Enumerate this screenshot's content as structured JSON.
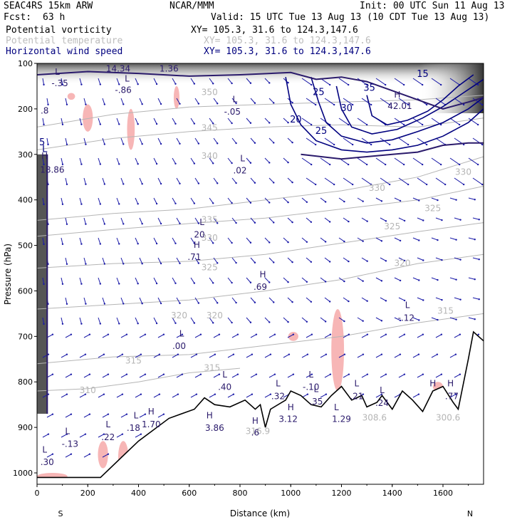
{
  "header": {
    "model": "SEAC4RS 15km ARW",
    "org": "NCAR/MMM",
    "init": "Init: 00 UTC Sun 11 Aug 13",
    "fcst_label": "Fcst:",
    "fcst_value": "63 h",
    "valid": "Valid: 15 UTC Tue 13 Aug 13 (10 CDT Tue 13 Aug 13)",
    "fields": [
      {
        "name": "Potential vorticity",
        "xy": "XY= 105.3, 31.6 to 124.3,147.6"
      },
      {
        "name": "Potential temperature",
        "xy": "XY= 105.3, 31.6 to 124.3,147.6"
      },
      {
        "name": "Horizontal wind speed",
        "xy": "XY= 105.3, 31.6 to 124.3,147.6"
      }
    ]
  },
  "colors": {
    "pv": "#2a1a6b",
    "theta": "#b5b5b5",
    "wind_speed": "#00007f",
    "shading": "#f7b6b6"
  },
  "chart_data": {
    "type": "cross-section",
    "xlabel": "Distance (km)",
    "ylabel": "Pressure (hPa)",
    "xlim": [
      0,
      1760
    ],
    "ylim": [
      1025,
      100
    ],
    "x_ticks": [
      0,
      200,
      400,
      600,
      800,
      1000,
      1200,
      1400,
      1600
    ],
    "y_ticks": [
      100,
      200,
      300,
      400,
      500,
      600,
      700,
      800,
      900,
      1000
    ],
    "endpoints": {
      "left": "S",
      "right": "N"
    },
    "terrain": [
      [
        0,
        1010
      ],
      [
        250,
        1010
      ],
      [
        400,
        930
      ],
      [
        520,
        880
      ],
      [
        620,
        860
      ],
      [
        660,
        835
      ],
      [
        700,
        850
      ],
      [
        760,
        855
      ],
      [
        820,
        840
      ],
      [
        860,
        860
      ],
      [
        880,
        850
      ],
      [
        900,
        900
      ],
      [
        920,
        860
      ],
      [
        980,
        840
      ],
      [
        1000,
        820
      ],
      [
        1040,
        830
      ],
      [
        1080,
        850
      ],
      [
        1120,
        855
      ],
      [
        1160,
        830
      ],
      [
        1200,
        810
      ],
      [
        1240,
        840
      ],
      [
        1280,
        830
      ],
      [
        1300,
        855
      ],
      [
        1340,
        845
      ],
      [
        1360,
        830
      ],
      [
        1400,
        860
      ],
      [
        1440,
        820
      ],
      [
        1480,
        840
      ],
      [
        1520,
        865
      ],
      [
        1560,
        820
      ],
      [
        1600,
        810
      ],
      [
        1640,
        845
      ],
      [
        1660,
        860
      ],
      [
        1700,
        750
      ],
      [
        1720,
        690
      ],
      [
        1760,
        710
      ]
    ],
    "theta_contours": [
      {
        "label": "345",
        "points": [
          [
            0,
            240
          ],
          [
            300,
            212
          ],
          [
            600,
            196
          ],
          [
            900,
            190
          ],
          [
            1200,
            185
          ],
          [
            1500,
            180
          ],
          [
            1760,
            170
          ]
        ]
      },
      {
        "label": "340",
        "points": [
          [
            0,
            290
          ],
          [
            300,
            265
          ],
          [
            600,
            250
          ],
          [
            900,
            240
          ],
          [
            1200,
            235
          ],
          [
            1500,
            240
          ],
          [
            1760,
            220
          ]
        ]
      },
      {
        "label": "335",
        "points": [
          [
            0,
            445
          ],
          [
            300,
            430
          ],
          [
            600,
            420
          ],
          [
            900,
            400
          ],
          [
            1200,
            380
          ],
          [
            1500,
            350
          ],
          [
            1760,
            305
          ]
        ]
      },
      {
        "label": "330",
        "points": [
          [
            0,
            480
          ],
          [
            300,
            465
          ],
          [
            600,
            452
          ],
          [
            900,
            440
          ],
          [
            1200,
            420
          ],
          [
            1500,
            400
          ],
          [
            1760,
            370
          ]
        ]
      },
      {
        "label": "325",
        "points": [
          [
            0,
            550
          ],
          [
            300,
            540
          ],
          [
            600,
            535
          ],
          [
            900,
            520
          ],
          [
            1200,
            495
          ],
          [
            1500,
            470
          ],
          [
            1760,
            450
          ]
        ]
      },
      {
        "label": "320",
        "points": [
          [
            0,
            640
          ],
          [
            300,
            630
          ],
          [
            600,
            620
          ],
          [
            900,
            600
          ],
          [
            1200,
            575
          ],
          [
            1500,
            540
          ],
          [
            1760,
            520
          ]
        ]
      },
      {
        "label": "315",
        "points": [
          [
            0,
            760
          ],
          [
            300,
            745
          ],
          [
            600,
            740
          ],
          [
            900,
            720
          ],
          [
            1200,
            700
          ],
          [
            1500,
            670
          ],
          [
            1760,
            650
          ]
        ]
      },
      {
        "label": "310",
        "points": [
          [
            0,
            820
          ],
          [
            200,
            815
          ],
          [
            400,
            800
          ],
          [
            600,
            780
          ],
          [
            800,
            770
          ]
        ]
      }
    ],
    "theta_labels": [
      {
        "text": "350",
        "x": 680,
        "y": 170
      },
      {
        "text": "345",
        "x": 680,
        "y": 248
      },
      {
        "text": "340",
        "x": 680,
        "y": 310
      },
      {
        "text": "335",
        "x": 680,
        "y": 450
      },
      {
        "text": "330",
        "x": 680,
        "y": 490
      },
      {
        "text": "325",
        "x": 680,
        "y": 555
      },
      {
        "text": "320",
        "x": 560,
        "y": 660
      },
      {
        "text": "320",
        "x": 700,
        "y": 660
      },
      {
        "text": "315",
        "x": 380,
        "y": 760
      },
      {
        "text": "315",
        "x": 690,
        "y": 775
      },
      {
        "text": "310",
        "x": 200,
        "y": 825
      },
      {
        "text": "330",
        "x": 1340,
        "y": 380
      },
      {
        "text": "330",
        "x": 1680,
        "y": 345
      },
      {
        "text": "325",
        "x": 1400,
        "y": 465
      },
      {
        "text": "325",
        "x": 1560,
        "y": 425
      },
      {
        "text": "320",
        "x": 1440,
        "y": 545
      },
      {
        "text": "315",
        "x": 1610,
        "y": 650
      },
      {
        "text": "316.9",
        "x": 870,
        "y": 915
      },
      {
        "text": "308.6",
        "x": 1330,
        "y": 885
      },
      {
        "text": "300.6",
        "x": 1620,
        "y": 885
      },
      {
        "text": "320",
        "x": 20,
        "y": 1045
      }
    ],
    "wind_speed_contours": [
      {
        "label": "20",
        "points": [
          [
            980,
            130
          ],
          [
            1000,
            190
          ],
          [
            1040,
            235
          ],
          [
            1100,
            270
          ],
          [
            1200,
            290
          ],
          [
            1300,
            295
          ],
          [
            1400,
            290
          ],
          [
            1500,
            280
          ],
          [
            1600,
            260
          ],
          [
            1700,
            230
          ],
          [
            1760,
            200
          ]
        ]
      },
      {
        "label": "25",
        "points": [
          [
            1080,
            130
          ],
          [
            1110,
            185
          ],
          [
            1140,
            230
          ],
          [
            1200,
            260
          ],
          [
            1300,
            275
          ],
          [
            1400,
            268
          ],
          [
            1500,
            250
          ],
          [
            1600,
            230
          ],
          [
            1700,
            200
          ],
          [
            1760,
            175
          ]
        ]
      },
      {
        "label": "30",
        "points": [
          [
            1180,
            150
          ],
          [
            1200,
            200
          ],
          [
            1240,
            240
          ],
          [
            1320,
            255
          ],
          [
            1420,
            245
          ],
          [
            1520,
            220
          ],
          [
            1600,
            195
          ],
          [
            1680,
            165
          ],
          [
            1760,
            135
          ]
        ]
      },
      {
        "label": "35",
        "points": [
          [
            1300,
            170
          ],
          [
            1320,
            215
          ],
          [
            1380,
            235
          ],
          [
            1460,
            225
          ],
          [
            1540,
            205
          ],
          [
            1600,
            180
          ],
          [
            1660,
            150
          ],
          [
            1720,
            125
          ]
        ]
      }
    ],
    "wind_labels": [
      {
        "text": "20",
        "x": 1020,
        "y": 230
      },
      {
        "text": "25",
        "x": 1110,
        "y": 170
      },
      {
        "text": "25",
        "x": 1120,
        "y": 255
      },
      {
        "text": "30",
        "x": 1220,
        "y": 205
      },
      {
        "text": "35",
        "x": 1310,
        "y": 160
      },
      {
        "text": "15",
        "x": 1520,
        "y": 130
      },
      {
        "text": "5",
        "x": 20,
        "y": 280
      },
      {
        "text": "L",
        "x": 30,
        "y": 295
      }
    ],
    "pv_labels": [
      {
        "text": "L",
        "x": 80,
        "y": 125
      },
      {
        "text": "-.35",
        "x": 90,
        "y": 150
      },
      {
        "text": ".8",
        "x": 30,
        "y": 210
      },
      {
        "text": "H",
        "x": 30,
        "y": 310
      },
      {
        "text": "18.86",
        "x": 60,
        "y": 340
      },
      {
        "text": "14.34",
        "x": 320,
        "y": 118
      },
      {
        "text": "L",
        "x": 355,
        "y": 140
      },
      {
        "text": "-.86",
        "x": 340,
        "y": 165
      },
      {
        "text": "1.36",
        "x": 520,
        "y": 118
      },
      {
        "text": "L",
        "x": 780,
        "y": 185
      },
      {
        "text": "-.05",
        "x": 770,
        "y": 213
      },
      {
        "text": "L",
        "x": 810,
        "y": 315
      },
      {
        "text": ".02",
        "x": 800,
        "y": 342
      },
      {
        "text": "L",
        "x": 650,
        "y": 455
      },
      {
        "text": "20",
        "x": 640,
        "y": 483
      },
      {
        "text": "H",
        "x": 630,
        "y": 505
      },
      {
        "text": ".71",
        "x": 620,
        "y": 532
      },
      {
        "text": "H",
        "x": 890,
        "y": 570
      },
      {
        "text": ".69",
        "x": 880,
        "y": 598
      },
      {
        "text": "L",
        "x": 570,
        "y": 700
      },
      {
        "text": ".00",
        "x": 560,
        "y": 728
      },
      {
        "text": "L",
        "x": 740,
        "y": 790
      },
      {
        "text": ".40",
        "x": 740,
        "y": 818
      },
      {
        "text": "L",
        "x": 950,
        "y": 810
      },
      {
        "text": ".32",
        "x": 950,
        "y": 838
      },
      {
        "text": "L",
        "x": 1080,
        "y": 790
      },
      {
        "text": "-.10",
        "x": 1080,
        "y": 818
      },
      {
        "text": "L",
        "x": 1100,
        "y": 822
      },
      {
        "text": ".35",
        "x": 1100,
        "y": 850
      },
      {
        "text": "L",
        "x": 1260,
        "y": 810
      },
      {
        "text": ".21",
        "x": 1260,
        "y": 838
      },
      {
        "text": "L",
        "x": 1360,
        "y": 825
      },
      {
        "text": ".24",
        "x": 1360,
        "y": 853
      },
      {
        "text": "H",
        "x": 1560,
        "y": 810
      },
      {
        "text": "H",
        "x": 1630,
        "y": 810
      },
      {
        "text": ".77",
        "x": 1635,
        "y": 838
      },
      {
        "text": "L",
        "x": 1460,
        "y": 638
      },
      {
        "text": "-.12",
        "x": 1455,
        "y": 666
      },
      {
        "text": "H",
        "x": 1420,
        "y": 175
      },
      {
        "text": "42.01",
        "x": 1430,
        "y": 200
      },
      {
        "text": "H",
        "x": 1000,
        "y": 862
      },
      {
        "text": "3.12",
        "x": 990,
        "y": 888
      },
      {
        "text": "H",
        "x": 680,
        "y": 880
      },
      {
        "text": "3.86",
        "x": 700,
        "y": 908
      },
      {
        "text": "H",
        "x": 860,
        "y": 892
      },
      {
        "text": ".6",
        "x": 860,
        "y": 918
      },
      {
        "text": "L",
        "x": 1180,
        "y": 862
      },
      {
        "text": "1.29",
        "x": 1200,
        "y": 888
      },
      {
        "text": "L",
        "x": 390,
        "y": 880
      },
      {
        "text": ".18",
        "x": 380,
        "y": 908
      },
      {
        "text": "H",
        "x": 450,
        "y": 872
      },
      {
        "text": "1.70",
        "x": 450,
        "y": 900
      },
      {
        "text": "L",
        "x": 280,
        "y": 900
      },
      {
        "text": ".22",
        "x": 280,
        "y": 928
      },
      {
        "text": "L",
        "x": 120,
        "y": 915
      },
      {
        "text": "-.13",
        "x": 130,
        "y": 943
      },
      {
        "text": "L",
        "x": 30,
        "y": 955
      },
      {
        "text": ".30",
        "x": 40,
        "y": 983
      }
    ]
  }
}
